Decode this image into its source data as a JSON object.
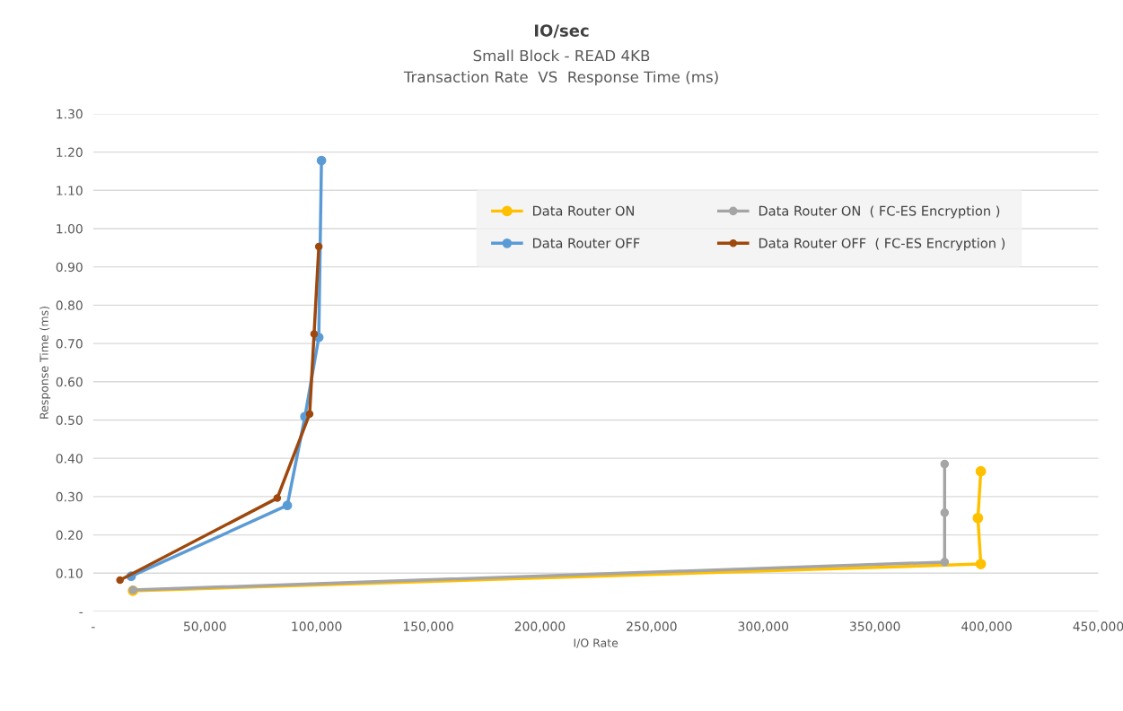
{
  "chart_data": {
    "type": "line",
    "title": "IO/sec",
    "subtitle": "Small Block - READ 4KB\nTransaction Rate  VS  Response Time (ms)",
    "xlabel": "I/O Rate",
    "ylabel": "Response Time (ms)",
    "xlim": [
      0,
      450000
    ],
    "ylim": [
      0,
      1.3
    ],
    "xticks": [
      {
        "value": 0,
        "label": "-"
      },
      {
        "value": 50000,
        "label": "50,000"
      },
      {
        "value": 100000,
        "label": "100,000"
      },
      {
        "value": 150000,
        "label": "150,000"
      },
      {
        "value": 200000,
        "label": "200,000"
      },
      {
        "value": 250000,
        "label": "250,000"
      },
      {
        "value": 300000,
        "label": "300,000"
      },
      {
        "value": 350000,
        "label": "350,000"
      },
      {
        "value": 400000,
        "label": "400,000"
      },
      {
        "value": 450000,
        "label": "450,000"
      }
    ],
    "yticks": [
      {
        "value": 0,
        "label": "-"
      },
      {
        "value": 0.1,
        "label": "0.10"
      },
      {
        "value": 0.2,
        "label": "0.20"
      },
      {
        "value": 0.3,
        "label": "0.30"
      },
      {
        "value": 0.4,
        "label": "0.40"
      },
      {
        "value": 0.5,
        "label": "0.50"
      },
      {
        "value": 0.6,
        "label": "0.60"
      },
      {
        "value": 0.7,
        "label": "0.70"
      },
      {
        "value": 0.8,
        "label": "0.80"
      },
      {
        "value": 0.9,
        "label": "0.90"
      },
      {
        "value": 1.0,
        "label": "1.00"
      },
      {
        "value": 1.1,
        "label": "1.10"
      },
      {
        "value": 1.2,
        "label": "1.20"
      },
      {
        "value": 1.3,
        "label": "1.30"
      }
    ],
    "grid": "y",
    "legend": "top right",
    "marker": "circle",
    "line_style": "solid",
    "series": [
      {
        "name": "Data Router ON",
        "color": "#ffc000",
        "x": [
          17800,
          397400,
          396100,
          397400
        ],
        "values": [
          0.054,
          0.124,
          0.244,
          0.366
        ]
      },
      {
        "name": "Data Router OFF",
        "color": "#5b9bd5",
        "x": [
          17000,
          86900,
          94800,
          101000,
          102200
        ],
        "values": [
          0.092,
          0.277,
          0.509,
          0.716,
          1.178
        ]
      },
      {
        "name": "Data Router ON  ( FC-ES Encryption )",
        "color": "#a5a5a5",
        "x": [
          17800,
          381200,
          381200,
          381200
        ],
        "values": [
          0.056,
          0.129,
          0.258,
          0.385
        ]
      },
      {
        "name": "Data Router OFF  ( FC-ES Encryption )",
        "color": "#9e480e",
        "x": [
          12000,
          82400,
          96900,
          98900,
          101000
        ],
        "values": [
          0.082,
          0.296,
          0.516,
          0.725,
          0.953
        ]
      }
    ]
  }
}
